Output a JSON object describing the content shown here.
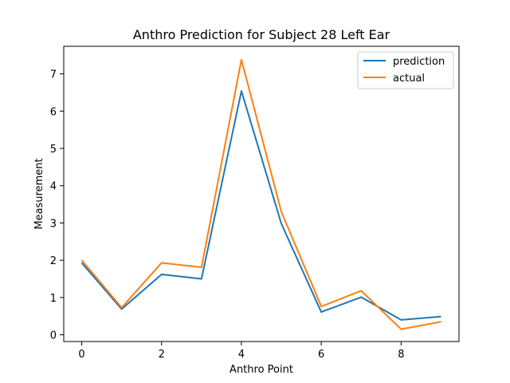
{
  "chart_data": {
    "type": "line",
    "title": "Anthro Prediction for Subject 28 Left Ear",
    "xlabel": "Anthro Point",
    "ylabel": "Measurement",
    "x": [
      0,
      1,
      2,
      3,
      4,
      5,
      6,
      7,
      8,
      9
    ],
    "xlim": [
      -0.45,
      9.45
    ],
    "ylim": [
      -0.18,
      7.74
    ],
    "xticks": [
      0,
      2,
      4,
      6,
      8
    ],
    "yticks": [
      0,
      1,
      2,
      3,
      4,
      5,
      6,
      7
    ],
    "grid": false,
    "legend_position": "top-right",
    "series": [
      {
        "name": "prediction",
        "color": "#1f77b4",
        "values": [
          1.93,
          0.69,
          1.62,
          1.5,
          6.54,
          2.98,
          0.61,
          1.01,
          0.4,
          0.49
        ]
      },
      {
        "name": "actual",
        "color": "#ff7f0e",
        "values": [
          2.0,
          0.73,
          1.93,
          1.81,
          7.38,
          3.3,
          0.76,
          1.18,
          0.15,
          0.35
        ]
      }
    ]
  }
}
